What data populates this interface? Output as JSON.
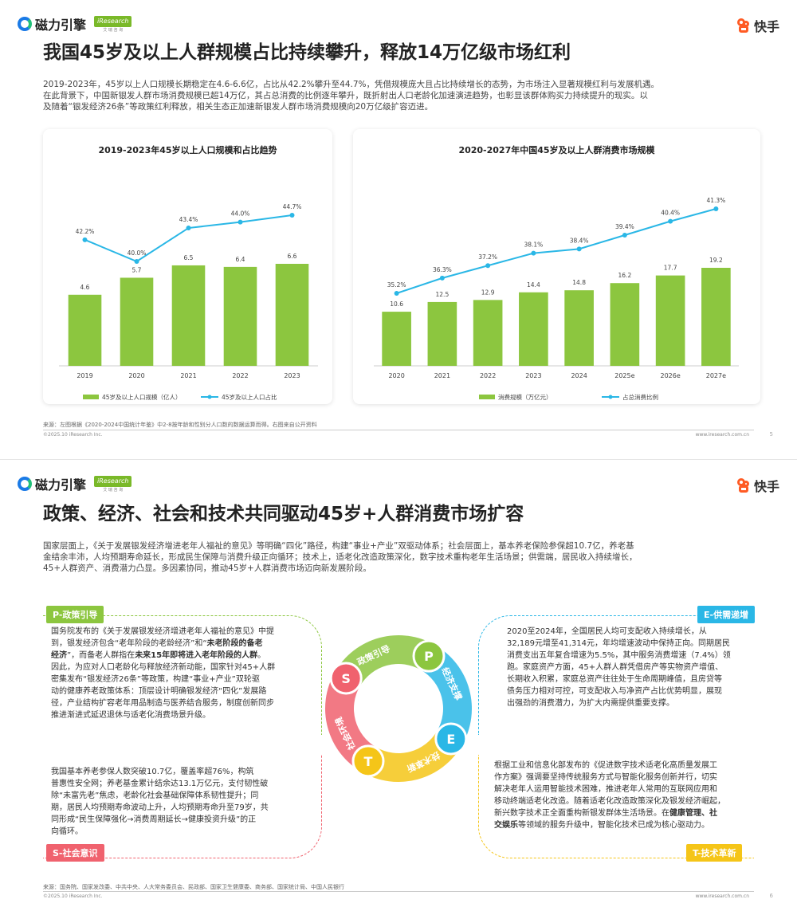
{
  "brand": {
    "left_logo": "磁力引擎",
    "ir_logo": "iResearch",
    "ir_sub": "艾 瑞 咨 询",
    "right_logo": "快手"
  },
  "page1": {
    "title": "我国45岁及以上人群规模占比持续攀升，释放14万亿级市场红利",
    "para_l1": "2019-2023年，45岁以上人口规模长期稳定在4.6-6.6亿，占比从42.2%攀升至44.7%，凭借规模庞大且占比持续增长的态势，为市场注入显著规模红利与发展机遇。",
    "para_l2": "在此背景下，中国新银发人群市场消费规模已超14万亿，其占总消费的比例逐年攀升，既折射出人口老龄化加速演进趋势，也彰显该群体购买力持续提升的现实。以",
    "para_l3": "及随着“银发经济26条”等政策红利释放，相关生态正加速新银发人群市场消费规模向20万亿级扩容迈进。",
    "source": "来源：左图根据《2020-2024中国统计年鉴》中2-8按年龄和性别分人口数的数据运算而得。右图来自公开资料",
    "copyright": "©2025.10 iResearch Inc.",
    "site": "www.iresearch.com.cn",
    "page_no": "5"
  },
  "chart_data": [
    {
      "type": "bar+line",
      "title": "2019-2023年45岁以上人口规模和占比趋势",
      "categories": [
        "2019",
        "2020",
        "2021",
        "2022",
        "2023"
      ],
      "series": [
        {
          "name": "45岁及以上人口规模（亿人）",
          "kind": "bar",
          "values": [
            4.6,
            5.7,
            6.5,
            6.4,
            6.6
          ],
          "labels": [
            "4.6",
            "5.7",
            "6.5",
            "6.4",
            "6.6"
          ]
        },
        {
          "name": "45岁及以上人口占比",
          "kind": "line",
          "values": [
            42.2,
            40.0,
            43.4,
            44.0,
            44.7
          ],
          "labels": [
            "42.2%",
            "40.0%",
            "43.4%",
            "44.0%",
            "44.7%"
          ]
        }
      ],
      "bar_color": "#8cc63f",
      "line_color": "#2ab7e6",
      "legend": "bottom"
    },
    {
      "type": "bar+line",
      "title": "2020-2027年中国45岁及以上人群消费市场规模",
      "categories": [
        "2020",
        "2021",
        "2022",
        "2023",
        "2024",
        "2025e",
        "2026e",
        "2027e"
      ],
      "series": [
        {
          "name": "消费规模（万亿元）",
          "kind": "bar",
          "values": [
            10.6,
            12.5,
            12.9,
            14.4,
            14.8,
            16.2,
            17.7,
            19.2
          ],
          "labels": [
            "10.6",
            "12.5",
            "12.9",
            "14.4",
            "14.8",
            "16.2",
            "17.7",
            "19.2"
          ]
        },
        {
          "name": "占总消费比例",
          "kind": "line",
          "values": [
            35.2,
            36.3,
            37.2,
            38.1,
            38.4,
            39.4,
            40.4,
            41.3
          ],
          "labels": [
            "35.2%",
            "36.3%",
            "37.2%",
            "38.1%",
            "38.4%",
            "39.4%",
            "40.4%",
            "41.3%"
          ]
        }
      ],
      "bar_color": "#8cc63f",
      "line_color": "#2ab7e6",
      "legend": "bottom"
    }
  ],
  "page2": {
    "title": "政策、经济、社会和技术共同驱动45岁+人群消费市场扩容",
    "para_l1": "国家层面上，《关于发展银发经济增进老年人福祉的意见》等明确“四化”路径，构建“事业+产业”双驱动体系；社会层面上，基本养老保险参保超10.7亿，养老基",
    "para_l2": "金结余丰沛，人均预期寿命延长，形成民生保障与消费升级正向循环；技术上，适老化改造政策深化，数字技术重构老年生活场景；供需端，居民收入持续增长，",
    "para_l3": "45+人群资产、消费潜力凸显。多因素协同，推动45岁+人群消费市场迈向新发展阶段。",
    "tags": {
      "p": "P-政策引导",
      "e": "E-供需递增",
      "s": "S-社会意识",
      "t": "T-技术革新"
    },
    "ring": {
      "p": "P",
      "e": "E",
      "s": "S",
      "t": "T",
      "arc_p": "政策引导",
      "arc_e": "经济支撑",
      "arc_s": "社会环境",
      "arc_t": "技术革新"
    },
    "box_p": [
      "国务院发布的《关于发展银发经济增进老年人福祉的意见》中提",
      "到，银发经济包含“老年阶段的老龄经济”和“<b>未老阶段的备老</b>",
      "<b>经济</b>”，而备老人群指在<b>未来15年即将进入老年阶段的人群</b>。",
      "因此，为应对人口老龄化与释放经济新动能，国家针对45+人群",
      "密集发布“银发经济26条”等政策，构建“事业+产业”双轮驱",
      "动的健康养老政策体系：顶层设计明确银发经济“四化”发展路",
      "径，产业结构扩容老年用品制造与医养结合服务，制度创新同步",
      "推进渐进式延迟退休与适老化消费场景升级。"
    ],
    "box_e": [
      "2020至2024年，全国居民人均可支配收入持续增长，从",
      "32,189元增至41,314元，年均增速波动中保持正向。同期居民",
      "消费支出五年复合增速为5.5%，其中服务消费增速（7.4%）领",
      "跑。家庭资产方面，45+人群人群凭借房产等实物资产增值、",
      "长期收入积累，家庭总资产往往处于生命周期峰值，且房贷等",
      "债务压力相对可控，可支配收入与净资产占比优势明显，展现",
      "出强劲的消费潜力，为扩大内需提供重要支撑。"
    ],
    "box_s": [
      "我国基本养老参保人数突破10.7亿，覆盖率超76%，构筑",
      "普惠性安全网；养老基金累计结余达13.1万亿元，支付韧性破",
      "除“未富先老”焦虑，老龄化社会基础保障体系韧性提升；同",
      "期，居民人均预期寿命波动上升，人均预期寿命升至79岁，共",
      "同形成“民生保障强化→消费周期延长→健康投资升级”的正",
      "向循环。"
    ],
    "box_t": [
      "根据工业和信息化部发布的《促进数字技术适老化高质量发展工",
      "作方案》强调要坚持传统服务方式与智能化服务创新并行，切实",
      "解决老年人运用智能技术困难，推进老年人常用的互联网应用和",
      "移动终端适老化改造。随着适老化改造政策深化及银发经济崛起，",
      "新兴数字技术正全面重构新银发群体生活场景。在<b>健康管理、社</b>",
      "<b>交娱乐</b>等领域的服务升级中，智能化技术已成为核心驱动力。"
    ],
    "source": "来源：国务院、国家发改委、中共中央、人大常务委员会、民政部、国家卫生健康委、商务部、国家统计局、中国人民银行",
    "copyright": "©2025.10 iResearch Inc.",
    "site": "www.iresearch.com.cn",
    "page_no": "6"
  },
  "colors": {
    "p": "#8cc63f",
    "e": "#2ab7e6",
    "s": "#f0626e",
    "t": "#f5c518"
  }
}
